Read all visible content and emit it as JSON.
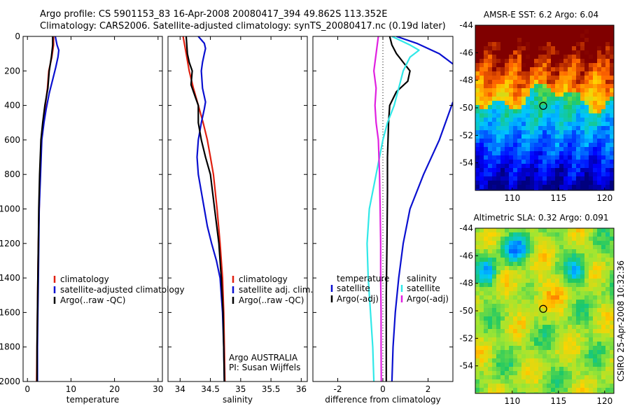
{
  "title": {
    "line1": "Argo profile: CS 5901153_83 16-Apr-2008 20080417_394 49.862S 113.352E",
    "line2": "Climatology: CARS2006. Satellite-adjusted climatology: synTS_20080417.nc (0.19d later)"
  },
  "colors": {
    "red": "#e02010",
    "blue": "#0a10d0",
    "black": "#000000",
    "cyan": "#30e8e8",
    "magenta": "#e020e0"
  },
  "chart_data": [
    {
      "type": "line",
      "xlabel": "temperature",
      "ylim": [
        2000,
        0
      ],
      "xlim": [
        -1,
        31
      ],
      "xticks": [
        0,
        10,
        20,
        30
      ],
      "yticks": [
        0,
        200,
        400,
        600,
        800,
        1000,
        1200,
        1400,
        1600,
        1800,
        2000
      ],
      "legend": {
        "position": "lower-right",
        "entries": [
          "climatology",
          "satellite-adjusted climatology",
          "Argo(..raw -QC)"
        ]
      },
      "series": [
        {
          "name": "climatology",
          "color": "red",
          "x": [
            6.0,
            6.0,
            5.6,
            4.9,
            4.6,
            4.1,
            3.6,
            3.2,
            2.9,
            2.7,
            2.5,
            2.4,
            2.3,
            2.2,
            2.1
          ],
          "y": [
            0,
            50,
            120,
            200,
            300,
            400,
            500,
            600,
            800,
            1000,
            1200,
            1400,
            1600,
            1800,
            2000
          ]
        },
        {
          "name": "satellite-adjusted climatology",
          "color": "blue",
          "x": [
            6.4,
            6.8,
            7.2,
            7.0,
            6.5,
            5.8,
            5.0,
            4.3,
            3.8,
            3.3,
            3.0,
            2.7,
            2.6,
            2.5,
            2.4,
            2.3,
            2.3
          ],
          "y": [
            0,
            50,
            80,
            120,
            180,
            250,
            330,
            420,
            500,
            600,
            800,
            1000,
            1200,
            1400,
            1600,
            1800,
            2000
          ]
        },
        {
          "name": "Argo(..raw -QC)",
          "color": "black",
          "x": [
            5.8,
            5.8,
            5.5,
            5.0,
            4.7,
            4.0,
            3.5,
            3.1,
            2.8,
            2.6,
            2.5,
            2.4,
            2.3,
            2.2,
            2.2
          ],
          "y": [
            0,
            50,
            120,
            200,
            300,
            400,
            500,
            600,
            800,
            1000,
            1200,
            1400,
            1600,
            1800,
            2000
          ]
        }
      ]
    },
    {
      "type": "line",
      "xlabel": "salinity",
      "ylim": [
        2000,
        0
      ],
      "xlim": [
        33.8,
        36.1
      ],
      "xticks": [
        34,
        34.5,
        35,
        35.5,
        36
      ],
      "xticklabels": [
        "34",
        "34.5",
        "35",
        "35.5",
        "36"
      ],
      "legend": {
        "position": "lower-right",
        "entries": [
          "climatology",
          "satellite adj. clim.",
          "Argo(..raw -QC)"
        ]
      },
      "annotation": [
        "Argo AUSTRALIA",
        "PI: Susan Wijffels"
      ],
      "series": [
        {
          "name": "climatology",
          "color": "red",
          "x": [
            34.05,
            34.1,
            34.15,
            34.22,
            34.3,
            34.38,
            34.45,
            34.5,
            34.55,
            34.61,
            34.66,
            34.7,
            34.72,
            34.73,
            34.74
          ],
          "y": [
            0,
            100,
            200,
            300,
            400,
            500,
            600,
            700,
            800,
            1000,
            1200,
            1400,
            1600,
            1800,
            2000
          ]
        },
        {
          "name": "satellite adj. clim.",
          "color": "blue",
          "x": [
            34.3,
            34.4,
            34.42,
            34.4,
            34.37,
            34.35,
            34.37,
            34.42,
            34.4,
            34.35,
            34.3,
            34.28,
            34.3,
            34.35,
            34.4,
            34.45,
            34.52,
            34.6,
            34.66,
            34.7,
            34.72,
            34.73
          ],
          "y": [
            0,
            40,
            70,
            100,
            150,
            200,
            300,
            380,
            420,
            500,
            600,
            700,
            800,
            900,
            1000,
            1100,
            1200,
            1300,
            1400,
            1600,
            1800,
            2000
          ]
        },
        {
          "name": "Argo(..raw -QC)",
          "color": "black",
          "x": [
            34.1,
            34.12,
            34.15,
            34.2,
            34.18,
            34.25,
            34.3,
            34.3,
            34.35,
            34.42,
            34.5,
            34.57,
            34.64,
            34.68,
            34.71,
            34.72,
            34.73
          ],
          "y": [
            0,
            100,
            150,
            200,
            280,
            350,
            400,
            500,
            600,
            700,
            800,
            1000,
            1200,
            1400,
            1600,
            1800,
            2000
          ]
        }
      ]
    },
    {
      "type": "line",
      "xlabel": "difference from climatology",
      "ylim": [
        2000,
        0
      ],
      "xlim": [
        -3.1,
        3.1
      ],
      "xticks": [
        -2,
        0,
        2
      ],
      "legend": {
        "position": "lower-right",
        "headers": [
          "temperature",
          "salinity"
        ],
        "entries": [
          "satellite",
          "Argo(-adj)",
          "satellite",
          "Argo(-adj)"
        ]
      },
      "series": [
        {
          "name": "temperature satellite",
          "color": "blue",
          "x": [
            0.6,
            1.5,
            2.5,
            3.1
          ],
          "y": [
            0,
            40,
            100,
            160
          ]
        },
        {
          "name": "temperature satellite (deep)",
          "color": "blue",
          "x": [
            3.1,
            2.5,
            1.8,
            1.2,
            0.9,
            0.7,
            0.55,
            0.45,
            0.4
          ],
          "y": [
            380,
            600,
            800,
            1000,
            1200,
            1400,
            1600,
            1800,
            2000
          ]
        },
        {
          "name": "temperature Argo(-adj)",
          "color": "black",
          "x": [
            0.3,
            0.4,
            0.6,
            0.9,
            1.2,
            1.1,
            0.6,
            0.3,
            0.25,
            0.2,
            0.2,
            0.18,
            0.15,
            0.15,
            0.15
          ],
          "y": [
            0,
            50,
            100,
            150,
            200,
            260,
            320,
            400,
            500,
            700,
            900,
            1200,
            1500,
            1800,
            2000
          ]
        },
        {
          "name": "salinity satellite",
          "color": "cyan",
          "x": [
            0.4,
            1.2,
            1.6,
            1.2,
            0.9,
            0.7,
            0.5,
            0.2,
            0.0,
            -0.3,
            -0.6,
            -0.7,
            -0.65,
            -0.55,
            -0.45,
            -0.4
          ],
          "y": [
            0,
            50,
            80,
            120,
            200,
            300,
            400,
            500,
            600,
            800,
            1000,
            1200,
            1400,
            1600,
            1800,
            2000
          ]
        },
        {
          "name": "salinity Argo(-adj)",
          "color": "magenta",
          "x": [
            -0.2,
            -0.3,
            -0.4,
            -0.3,
            -0.35,
            -0.3,
            -0.2,
            -0.15,
            -0.12,
            -0.1,
            -0.1,
            -0.08,
            -0.08,
            -0.07
          ],
          "y": [
            0,
            100,
            200,
            300,
            400,
            500,
            600,
            800,
            1000,
            1200,
            1400,
            1600,
            1800,
            2000
          ]
        }
      ]
    },
    {
      "type": "heatmap",
      "title": "AMSR-E SST: 6.2 Argo: 6.04",
      "xlim": [
        106,
        121
      ],
      "ylim": [
        -56,
        -44
      ],
      "xticks": [
        110,
        115,
        120
      ],
      "yticks": [
        -54,
        -52,
        -50,
        -48,
        -46,
        -44
      ],
      "marker": {
        "x": 113.35,
        "y": -49.86
      }
    },
    {
      "type": "heatmap",
      "title": "Altimetric SLA: 0.32 Argo: 0.091",
      "xlim": [
        106,
        121
      ],
      "ylim": [
        -56,
        -44
      ],
      "xticks": [
        110,
        115,
        120
      ],
      "yticks": [
        -54,
        -52,
        -50,
        -48,
        -46,
        -44
      ],
      "marker": {
        "x": 113.35,
        "y": -49.86
      }
    }
  ],
  "footer_stamp": "CSIRO 25-Apr-2008 10:32:36"
}
